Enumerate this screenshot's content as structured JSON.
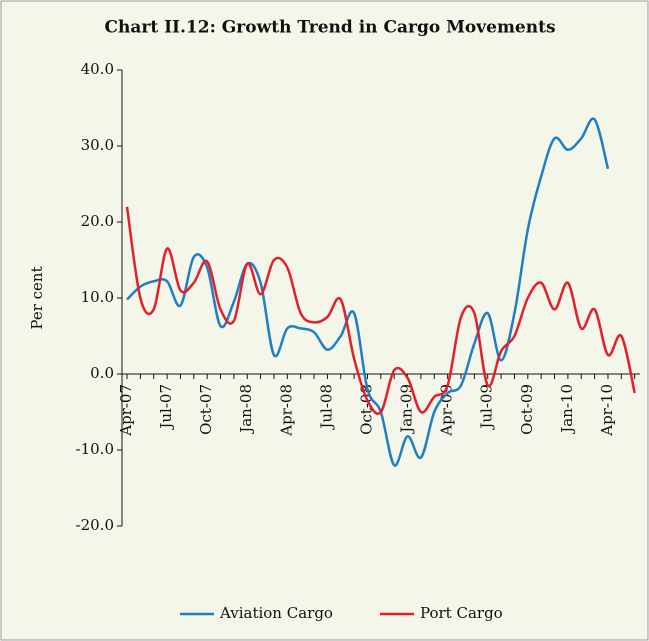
{
  "chart_data": {
    "type": "line",
    "title": "Chart II.12: Growth Trend in Cargo Movements",
    "y_label": "Per cent",
    "categories": [
      "Apr-07",
      null,
      null,
      "Jul-07",
      null,
      null,
      "Oct-07",
      null,
      null,
      "Jan-08",
      null,
      null,
      "Apr-08",
      null,
      null,
      "Jul-08",
      null,
      null,
      "Oct-08",
      null,
      null,
      "Jan-09",
      null,
      null,
      "Apr-09",
      null,
      null,
      "Jul-09",
      null,
      null,
      "Oct-09",
      null,
      null,
      "Jan-10",
      null,
      null,
      "Apr-10",
      null,
      null
    ],
    "series": [
      {
        "name": "Aviation Cargo",
        "color": "#1f7fc4",
        "values": [
          9.8,
          11.5,
          12.2,
          12.2,
          9,
          15.4,
          14,
          6.3,
          9.5,
          14.5,
          12,
          2.5,
          6,
          6,
          5.5,
          3.2,
          5,
          8,
          -2,
          -5,
          -12,
          -8.2,
          -11,
          -5,
          -2.5,
          -1.5,
          4,
          8,
          1.8,
          8,
          19,
          26,
          31,
          29.5,
          31,
          33.5,
          27,
          null,
          null
        ]
      },
      {
        "name": "Port Cargo",
        "color": "#e3202a",
        "values": [
          22,
          10,
          8.5,
          16.5,
          11,
          12,
          14.8,
          8.5,
          7,
          14.5,
          10.5,
          15,
          14,
          8,
          6.8,
          7.5,
          9.8,
          2,
          -3.5,
          -5,
          0.5,
          -0.5,
          -5,
          -3,
          -1.5,
          7.5,
          8,
          -1.5,
          3,
          5,
          10,
          12,
          8.5,
          12,
          6,
          8.5,
          2.5,
          5,
          -2.5
        ]
      }
    ],
    "ylim": [
      -20,
      40
    ],
    "yticks": [
      {
        "value": -20,
        "label": "-20.0"
      },
      {
        "value": -10,
        "label": "-10.0"
      },
      {
        "value": 0,
        "label": "0.0"
      },
      {
        "value": 10,
        "label": "10.0"
      },
      {
        "value": 20,
        "label": "20.0"
      },
      {
        "value": 30,
        "label": "30.0"
      },
      {
        "value": 40,
        "label": "40.0"
      }
    ],
    "legend": "bottom"
  }
}
